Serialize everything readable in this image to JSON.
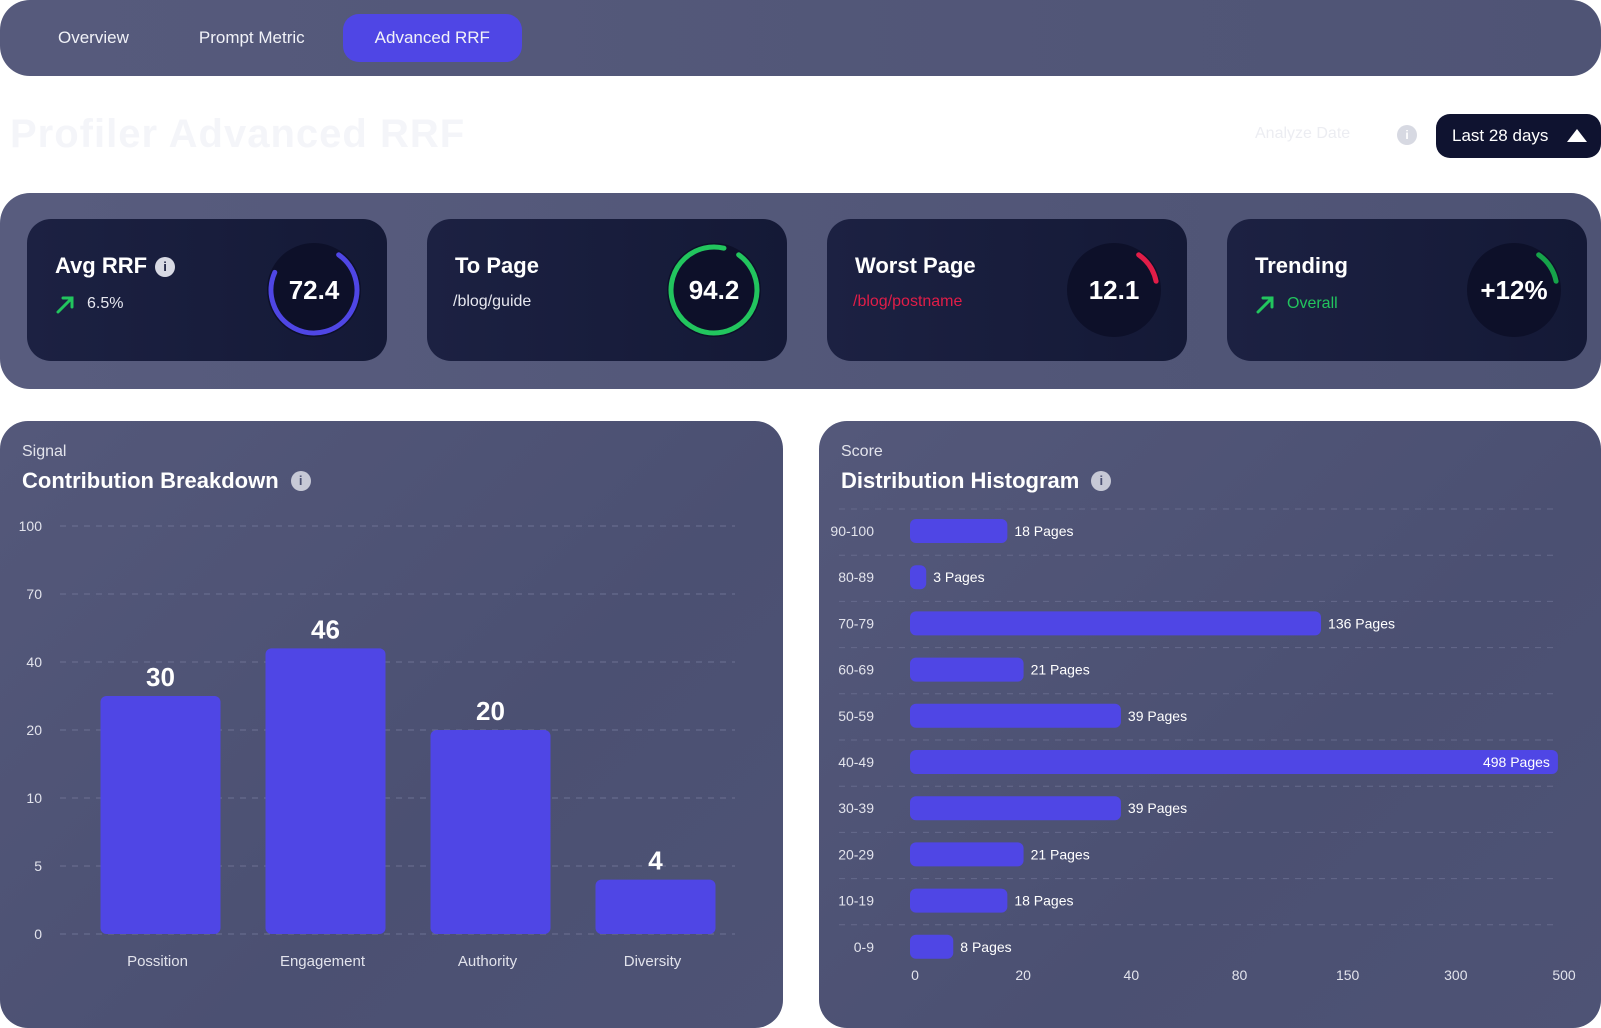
{
  "tabs": [
    {
      "label": "Overview",
      "active": false
    },
    {
      "label": "Prompt Metric",
      "active": false
    },
    {
      "label": "Advanced RRF",
      "active": true
    }
  ],
  "header": {
    "title": "Profiler Advanced RRF",
    "analyze_label": "Analyze Date",
    "date_range": "Last 28 days"
  },
  "kpis": {
    "avg_rrf": {
      "title": "Avg RRF",
      "delta": "6.5%",
      "value": "72.4",
      "fraction": 0.72,
      "color": "#4f46e5"
    },
    "top_page": {
      "title": "To Page",
      "path": "/blog/guide",
      "value": "94.2",
      "fraction": 0.94,
      "color": "#22c55e"
    },
    "worst_page": {
      "title": "Worst Page",
      "path": "/blog/postname",
      "value": "12.1",
      "fraction": 0.12,
      "color": "#e11d48"
    },
    "trending": {
      "title": "Trending",
      "label": "Overall",
      "value": "+12%",
      "fraction": 0.12,
      "color": "#16a34a"
    }
  },
  "colors": {
    "accent": "#4f46e5",
    "up": "#22c55e",
    "down": "#e11d48",
    "panel": "#4f5475",
    "card": "#161b38"
  },
  "chart_data": [
    {
      "type": "bar",
      "eyebrow": "Signal",
      "title": "Contribution Breakdown",
      "categories": [
        "Possition",
        "Engagement",
        "Authority",
        "Diversity"
      ],
      "values": [
        30,
        46,
        20,
        4
      ],
      "y_ticks": [
        100,
        70,
        40,
        20,
        10,
        5,
        0
      ],
      "scale": "ordinal-ticks",
      "grid": true
    },
    {
      "type": "bar",
      "orientation": "horizontal",
      "eyebrow": "Score",
      "title": "Distribution Histogram",
      "categories": [
        "90-100",
        "80-89",
        "70-79",
        "60-69",
        "50-59",
        "40-49",
        "30-39",
        "20-29",
        "10-19",
        "0-9"
      ],
      "values": [
        18,
        3,
        136,
        21,
        39,
        498,
        39,
        21,
        18,
        8
      ],
      "value_labels": [
        "18 Pages",
        "3 Pages",
        "136 Pages",
        "21 Pages",
        "39 Pages",
        "498 Pages",
        "39 Pages",
        "21 Pages",
        "18 Pages",
        "8 Pages"
      ],
      "x_ticks": [
        0,
        20,
        40,
        80,
        150,
        300,
        500
      ],
      "scale": "ordinal-ticks",
      "grid": true
    }
  ]
}
